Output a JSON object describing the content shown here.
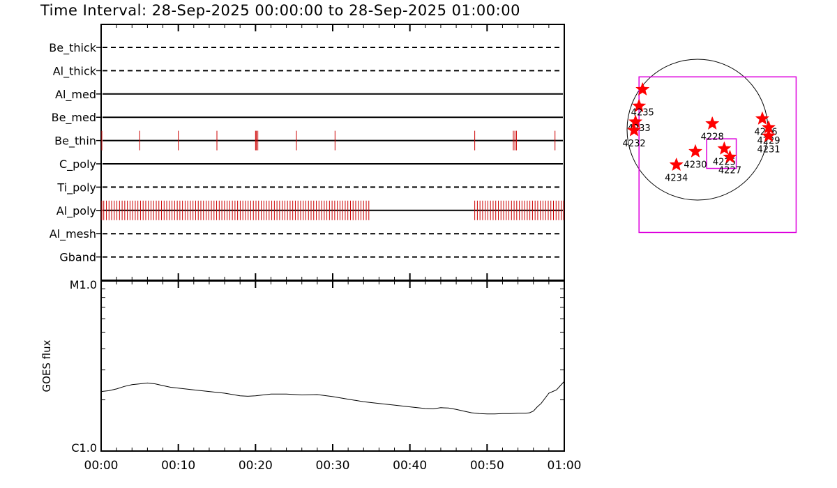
{
  "title": "Time Interval: 28-Sep-2025 00:00:00 to 28-Sep-2025 01:00:00",
  "colors": {
    "event": "#cc0000",
    "star": "#ff0000",
    "box": "#dd00dd",
    "line": "#000000"
  },
  "chart_data": [
    {
      "type": "timeline",
      "x_range_minutes": [
        0,
        60
      ],
      "x_tick_labels": [
        "00:00",
        "00:10",
        "00:20",
        "00:30",
        "00:40",
        "00:50",
        "01:00"
      ],
      "rows": [
        {
          "label": "Be_thick",
          "style": "dashed",
          "events": []
        },
        {
          "label": "Al_thick",
          "style": "dashed",
          "events": []
        },
        {
          "label": "Al_med",
          "style": "solid",
          "events": []
        },
        {
          "label": "Be_med",
          "style": "solid",
          "events": []
        },
        {
          "label": "Be_thin",
          "style": "solid",
          "events": [
            0,
            5,
            10,
            15,
            20,
            20.1,
            20.3,
            25.3,
            30.3,
            48.4,
            53.4,
            53.6,
            53.8,
            58.8
          ]
        },
        {
          "label": "C_poly",
          "style": "solid",
          "events": []
        },
        {
          "label": "Ti_poly",
          "style": "dashed",
          "events": []
        },
        {
          "label": "Al_poly",
          "style": "solid",
          "events": [],
          "event_ranges": [
            [
              0,
              35
            ],
            [
              48.4,
              60
            ]
          ],
          "event_step_minutes": 0.34
        },
        {
          "label": "Al_mesh",
          "style": "dashed",
          "events": []
        },
        {
          "label": "Gband",
          "style": "dashed",
          "events": []
        }
      ]
    },
    {
      "type": "line",
      "ylabel": "GOES flux",
      "y_tick_labels": [
        "M1.0",
        "C1.0"
      ],
      "ylim": [
        "C1.0",
        "M1.0"
      ],
      "x_tick_labels": [
        "00:00",
        "00:10",
        "00:20",
        "00:30",
        "00:40",
        "00:50",
        "01:00"
      ],
      "series": [
        {
          "x": [
            0,
            1,
            2,
            3,
            4,
            5,
            6,
            7,
            8,
            9,
            10,
            12,
            14,
            16,
            18,
            19,
            20,
            21,
            22,
            24,
            26,
            28,
            30,
            32,
            34,
            36,
            38,
            40,
            42,
            43,
            44,
            45,
            46,
            47,
            48,
            49,
            50,
            51,
            52,
            53,
            54,
            55,
            55.5,
            56,
            56.5,
            57,
            58,
            59,
            60
          ],
          "y_log_fraction": [
            0.35,
            0.355,
            0.365,
            0.38,
            0.39,
            0.395,
            0.4,
            0.395,
            0.385,
            0.375,
            0.37,
            0.36,
            0.35,
            0.34,
            0.325,
            0.322,
            0.325,
            0.33,
            0.335,
            0.335,
            0.33,
            0.332,
            0.32,
            0.305,
            0.29,
            0.28,
            0.27,
            0.26,
            0.25,
            0.248,
            0.255,
            0.253,
            0.245,
            0.235,
            0.225,
            0.22,
            0.218,
            0.218,
            0.22,
            0.22,
            0.222,
            0.222,
            0.225,
            0.235,
            0.26,
            0.28,
            0.34,
            0.36,
            0.41
          ]
        }
      ]
    },
    {
      "type": "scatter",
      "role": "solar-disk-map",
      "disk_radius": 1.0,
      "points": [
        {
          "label": "",
          "x": -0.78,
          "y": 0.57,
          "label_dx": 0,
          "label_dy": 0
        },
        {
          "label": "4235",
          "x": -0.83,
          "y": 0.335,
          "label_dx": 0.05,
          "label_dy": -0.1
        },
        {
          "label": "4233",
          "x": -0.88,
          "y": 0.11,
          "label_dx": 0.05,
          "label_dy": -0.1
        },
        {
          "label": "4232",
          "x": -0.9,
          "y": -0.01,
          "label_dx": 0.0,
          "label_dy": -0.2
        },
        {
          "label": "4228",
          "x": 0.21,
          "y": 0.085,
          "label_dx": 0.0,
          "label_dy": -0.2
        },
        {
          "label": "4230",
          "x": -0.03,
          "y": -0.31,
          "label_dx": 0.0,
          "label_dy": -0.2
        },
        {
          "label": "4234",
          "x": -0.3,
          "y": -0.5,
          "label_dx": 0.0,
          "label_dy": -0.2
        },
        {
          "label": "4225",
          "x": 0.38,
          "y": -0.27,
          "label_dx": 0.0,
          "label_dy": -0.2
        },
        {
          "label": "4227",
          "x": 0.46,
          "y": -0.39,
          "label_dx": 0.0,
          "label_dy": -0.2
        },
        {
          "label": "4226",
          "x": 0.92,
          "y": 0.155,
          "label_dx": 0.05,
          "label_dy": -0.2
        },
        {
          "label": "4229",
          "x": 1.01,
          "y": 0.03,
          "label_dx": 0.0,
          "label_dy": -0.2
        },
        {
          "label": "4231",
          "x": 1.01,
          "y": -0.09,
          "label_dx": 0.0,
          "label_dy": -0.2
        }
      ],
      "boxes": [
        {
          "role": "field-of-view",
          "x0": -0.83,
          "x1": 1.4,
          "y0": -1.46,
          "y1": 0.75
        },
        {
          "role": "roi",
          "x0": 0.13,
          "x1": 0.55,
          "y0": -0.55,
          "y1": -0.13
        }
      ]
    }
  ]
}
